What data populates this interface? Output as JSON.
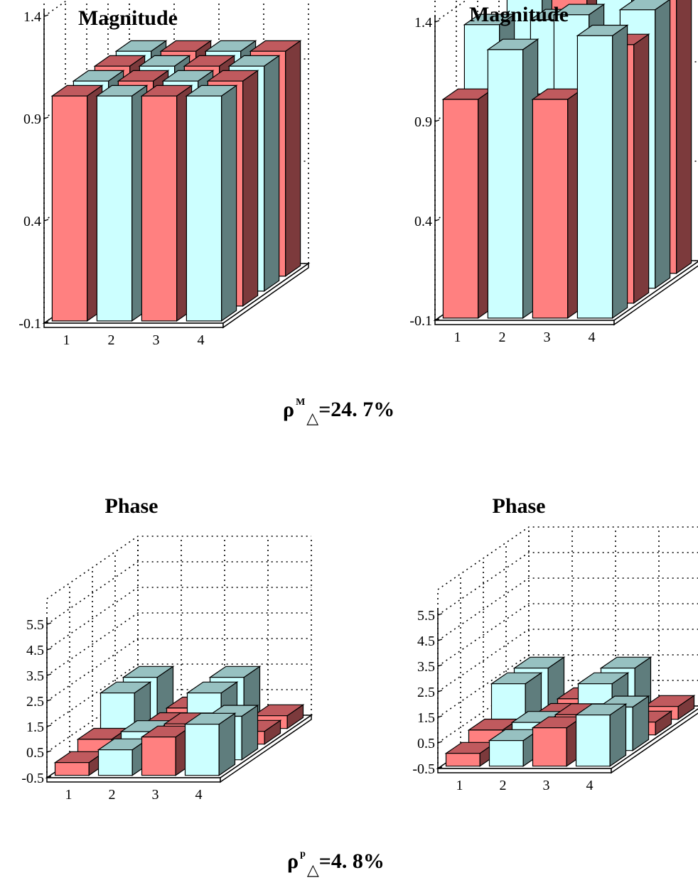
{
  "colors": {
    "red_front": "#ff8080",
    "red_top": "#c05a5e",
    "red_side": "#7c3a3c",
    "cyan_front": "#ccffff",
    "cyan_top": "#97c1c1",
    "cyan_side": "#5f7d7d"
  },
  "captions": {
    "magnitude": {
      "symbol": "ρ",
      "sup": "M",
      "sub": "△",
      "value": "=24. 7%"
    },
    "phase": {
      "symbol": "ρ",
      "sup": "p",
      "sub": "△",
      "value": "=4. 8%"
    }
  },
  "chart_data": [
    {
      "type": "bar3d",
      "title": "Magnitude",
      "x_ticks": [
        "1",
        "2",
        "3",
        "4"
      ],
      "z_ticks": [
        "-0.1",
        "0.4",
        "0.9",
        "1.4"
      ],
      "zlim": [
        -0.1,
        1.9
      ],
      "grid": true,
      "values": [
        [
          1.0,
          1.0,
          1.0,
          1.0
        ],
        [
          1.0,
          1.0,
          1.0,
          1.0
        ],
        [
          1.0,
          1.0,
          1.0,
          1.0
        ],
        [
          1.0,
          1.0,
          1.0,
          1.0
        ]
      ],
      "colors": [
        [
          "red",
          "cyan",
          "red",
          "cyan"
        ],
        [
          "cyan",
          "red",
          "cyan",
          "red"
        ],
        [
          "red",
          "cyan",
          "red",
          "cyan"
        ],
        [
          "cyan",
          "red",
          "cyan",
          "red"
        ]
      ]
    },
    {
      "type": "bar3d",
      "title": "Magnitude",
      "x_ticks": [
        "1",
        "2",
        "3",
        "4"
      ],
      "z_ticks": [
        "-0.1",
        "0.4",
        "0.9",
        "1.4"
      ],
      "zlim": [
        -0.1,
        1.9
      ],
      "grid": true,
      "values": [
        [
          1.0,
          1.25,
          1.0,
          1.32
        ],
        [
          1.3,
          0.9,
          1.35,
          1.2
        ],
        [
          0.95,
          1.25,
          0.95,
          1.3
        ],
        [
          1.35,
          1.3,
          1.35,
          1.3
        ]
      ],
      "colors": [
        [
          "red",
          "cyan",
          "red",
          "cyan"
        ],
        [
          "cyan",
          "red",
          "cyan",
          "red"
        ],
        [
          "red",
          "cyan",
          "red",
          "cyan"
        ],
        [
          "cyan",
          "red",
          "cyan",
          "red"
        ]
      ]
    },
    {
      "type": "bar3d",
      "title": "Phase",
      "x_ticks": [
        "1",
        "2",
        "3",
        "4"
      ],
      "z_ticks": [
        "-0.5",
        "0.5",
        "1.5",
        "2.5",
        "3.5",
        "4.5",
        "5.5"
      ],
      "zlim": [
        -0.5,
        6.5
      ],
      "grid": true,
      "values": [
        [
          0.0,
          0.5,
          1.0,
          1.5
        ],
        [
          0.3,
          0.6,
          0.9,
          1.2
        ],
        [
          1.5,
          0.3,
          1.5,
          0.0
        ],
        [
          1.5,
          0.3,
          1.5,
          0.0
        ]
      ],
      "colors": [
        [
          "red",
          "cyan",
          "red",
          "cyan"
        ],
        [
          "red",
          "cyan",
          "red",
          "cyan"
        ],
        [
          "cyan",
          "red",
          "cyan",
          "red"
        ],
        [
          "cyan",
          "red",
          "cyan",
          "red"
        ]
      ]
    },
    {
      "type": "bar3d",
      "title": "Phase",
      "x_ticks": [
        "1",
        "2",
        "3",
        "4"
      ],
      "z_ticks": [
        "-0.5",
        "0.5",
        "1.5",
        "2.5",
        "3.5",
        "4.5",
        "5.5"
      ],
      "zlim": [
        -0.5,
        6.5
      ],
      "grid": true,
      "values": [
        [
          0.0,
          0.5,
          1.0,
          1.5
        ],
        [
          0.3,
          0.6,
          0.9,
          1.2
        ],
        [
          1.5,
          0.3,
          1.5,
          0.0
        ],
        [
          1.5,
          0.3,
          1.5,
          0.0
        ]
      ],
      "colors": [
        [
          "red",
          "cyan",
          "red",
          "cyan"
        ],
        [
          "red",
          "cyan",
          "red",
          "cyan"
        ],
        [
          "cyan",
          "red",
          "cyan",
          "red"
        ],
        [
          "cyan",
          "red",
          "cyan",
          "red"
        ]
      ]
    }
  ]
}
